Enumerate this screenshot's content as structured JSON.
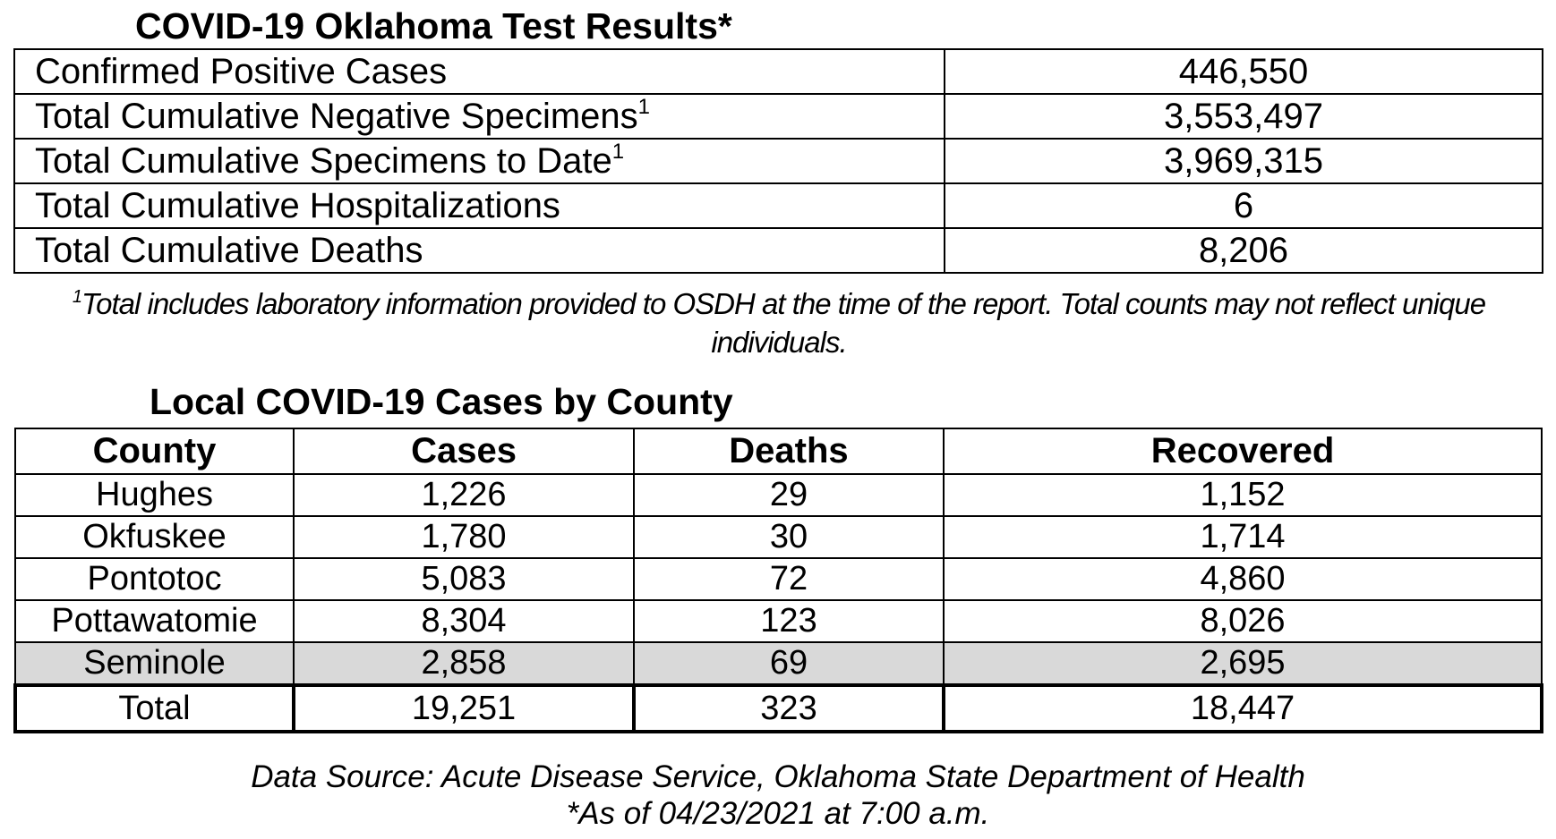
{
  "test_results": {
    "title": "COVID-19 Oklahoma Test Results*",
    "rows": [
      {
        "label": "Confirmed Positive Cases",
        "sup": "",
        "value": "446,550"
      },
      {
        "label": "Total Cumulative Negative Specimens",
        "sup": "1",
        "value": "3,553,497"
      },
      {
        "label": "Total Cumulative Specimens to Date",
        "sup": "1",
        "value": "3,969,315"
      },
      {
        "label": "Total Cumulative Hospitalizations",
        "sup": "",
        "value": "6"
      },
      {
        "label": "Total Cumulative Deaths",
        "sup": "",
        "value": "8,206"
      }
    ],
    "footnote_marker": "1",
    "footnote_text": "Total includes laboratory information provided to OSDH at the time of the report. Total counts may not reflect unique individuals."
  },
  "county_table": {
    "title": "Local COVID-19 Cases by County",
    "headers": [
      "County",
      "Cases",
      "Deaths",
      "Recovered"
    ],
    "rows": [
      [
        "Hughes",
        "1,226",
        "29",
        "1,152"
      ],
      [
        "Okfuskee",
        "1,780",
        "30",
        "1,714"
      ],
      [
        "Pontotoc",
        "5,083",
        "72",
        "4,860"
      ],
      [
        "Pottawatomie",
        "8,304",
        "123",
        "8,026"
      ],
      [
        "Seminole",
        "2,858",
        "69",
        "2,695"
      ]
    ],
    "shaded_row_color": "#d9d9d9",
    "total": [
      "Total",
      "19,251",
      "323",
      "18,447"
    ]
  },
  "source": {
    "line": "Data Source: Acute Disease Service, Oklahoma State Department of Health",
    "as_of": "*As of 04/23/2021 at 7:00 a.m."
  }
}
